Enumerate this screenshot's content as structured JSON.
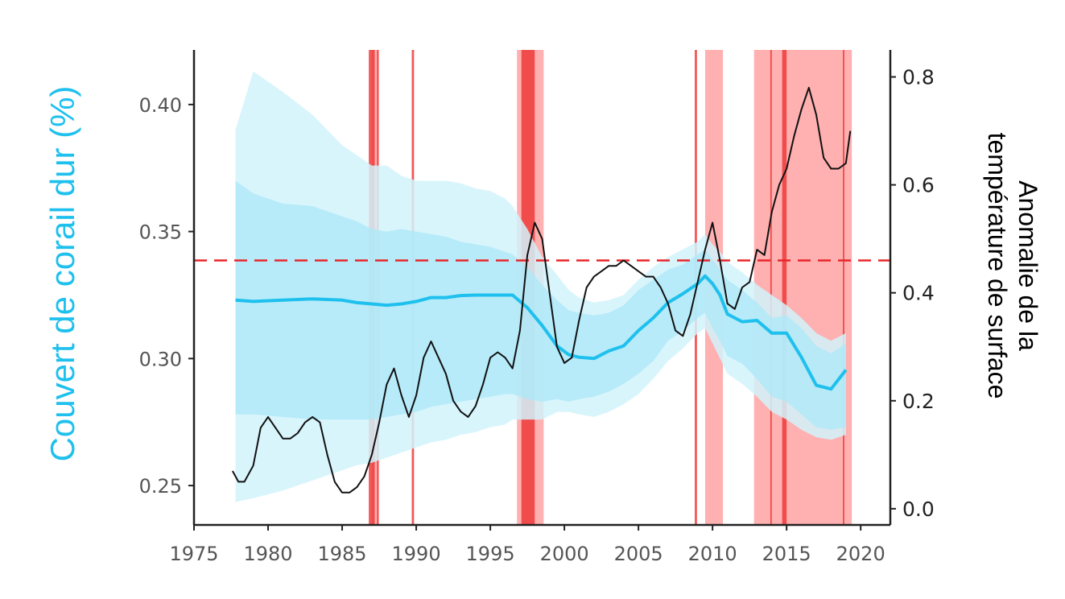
{
  "chart_data": {
    "type": "line",
    "ylabel_left": "Couvert de corail dur (%)",
    "ylabel_right": [
      "Anomalie de la",
      "température de surface"
    ],
    "xlim": [
      1975,
      2022
    ],
    "ylim_left": [
      0.2345,
      0.4215
    ],
    "ylim_right": [
      -0.03,
      0.85
    ],
    "x_ticks": [
      1975,
      1980,
      1985,
      1990,
      1995,
      2000,
      2005,
      2010,
      2015,
      2020
    ],
    "y_ticks_left": [
      "0.25",
      "0.30",
      "0.35",
      "0.40"
    ],
    "y_ticks_left_values": [
      0.25,
      0.3,
      0.35,
      0.4
    ],
    "y_ticks_right": [
      "0.0",
      "0.2",
      "0.4",
      "0.6",
      "0.8"
    ],
    "y_ticks_right_values": [
      0.0,
      0.2,
      0.4,
      0.6,
      0.8
    ],
    "threshold_right": 0.46,
    "colors": {
      "coral": "#1ec0ee",
      "outer_band": "#d2f3fc",
      "inner_band": "#aee8f8",
      "sst": "#111111",
      "threshold": "#e8262a",
      "event_light": "#ffb0b0",
      "event_strong": "#ee3b3b"
    },
    "bleaching_events_light": [
      [
        1987.0,
        1987.5
      ],
      [
        1996.8,
        1998.6
      ],
      [
        2009.5,
        2010.7
      ],
      [
        2012.8,
        2019.4
      ]
    ],
    "bleaching_events_strong": [
      [
        1986.8,
        1987.2
      ],
      [
        1987.35,
        1987.45
      ],
      [
        1989.7,
        1989.85
      ],
      [
        1997.1,
        1998.0
      ],
      [
        2008.8,
        2008.95
      ],
      [
        2013.9,
        2014.0
      ],
      [
        2014.7,
        2015.0
      ],
      [
        2018.8,
        2018.9
      ]
    ],
    "series": [
      {
        "name": "",
        "axis": "left",
        "x": [
          1977.8,
          1979,
          1981,
          1983,
          1985,
          1986,
          1987,
          1988,
          1989,
          1990,
          1991,
          1992,
          1993,
          1994,
          1995,
          1996,
          1996.5,
          1997.5,
          1998.5,
          1999.5,
          2000.3,
          2001,
          2002,
          2003,
          2004,
          2005,
          2006,
          2007,
          2008,
          2009,
          2009.5,
          2010,
          2010.5,
          2011,
          2012,
          2013,
          2014,
          2015,
          2016,
          2017,
          2018,
          2019
        ],
        "values": [
          0.323,
          0.3225,
          0.323,
          0.3235,
          0.323,
          0.322,
          0.3215,
          0.321,
          0.3215,
          0.3225,
          0.324,
          0.324,
          0.3248,
          0.325,
          0.325,
          0.325,
          0.325,
          0.32,
          0.313,
          0.305,
          0.3015,
          0.3005,
          0.3,
          0.303,
          0.305,
          0.311,
          0.316,
          0.322,
          0.3255,
          0.3295,
          0.3325,
          0.3295,
          0.325,
          0.3175,
          0.3145,
          0.315,
          0.31,
          0.31,
          0.3005,
          0.2895,
          0.288,
          0.2955
        ],
        "lower_inner": [
          0.278,
          0.278,
          0.277,
          0.276,
          0.276,
          0.276,
          0.276,
          0.277,
          0.278,
          0.279,
          0.281,
          0.282,
          0.283,
          0.284,
          0.285,
          0.286,
          0.286,
          0.284,
          0.283,
          0.284,
          0.283,
          0.284,
          0.285,
          0.287,
          0.29,
          0.294,
          0.299,
          0.307,
          0.311,
          0.316,
          0.318,
          0.312,
          0.307,
          0.301,
          0.298,
          0.292,
          0.285,
          0.283,
          0.278,
          0.273,
          0.272,
          0.273
        ],
        "upper_inner": [
          0.37,
          0.365,
          0.361,
          0.36,
          0.356,
          0.354,
          0.351,
          0.35,
          0.351,
          0.35,
          0.349,
          0.348,
          0.346,
          0.345,
          0.344,
          0.342,
          0.341,
          0.336,
          0.329,
          0.323,
          0.319,
          0.318,
          0.317,
          0.318,
          0.321,
          0.327,
          0.331,
          0.335,
          0.337,
          0.341,
          0.343,
          0.339,
          0.335,
          0.331,
          0.327,
          0.322,
          0.316,
          0.317,
          0.312,
          0.305,
          0.302,
          0.306
        ],
        "lower_outer": [
          0.2435,
          0.245,
          0.248,
          0.252,
          0.256,
          0.258,
          0.259,
          0.261,
          0.263,
          0.265,
          0.267,
          0.268,
          0.27,
          0.271,
          0.273,
          0.274,
          0.276,
          0.276,
          0.276,
          0.279,
          0.279,
          0.278,
          0.277,
          0.279,
          0.282,
          0.286,
          0.292,
          0.299,
          0.304,
          0.31,
          0.312,
          0.306,
          0.3,
          0.294,
          0.29,
          0.285,
          0.279,
          0.276,
          0.272,
          0.269,
          0.268,
          0.27
        ],
        "upper_outer": [
          0.39,
          0.413,
          0.405,
          0.396,
          0.384,
          0.38,
          0.376,
          0.376,
          0.372,
          0.37,
          0.37,
          0.37,
          0.369,
          0.367,
          0.366,
          0.363,
          0.36,
          0.351,
          0.34,
          0.333,
          0.327,
          0.324,
          0.322,
          0.323,
          0.325,
          0.331,
          0.336,
          0.34,
          0.343,
          0.346,
          0.349,
          0.345,
          0.342,
          0.338,
          0.334,
          0.329,
          0.325,
          0.321,
          0.316,
          0.31,
          0.307,
          0.31
        ]
      },
      {
        "name": "",
        "axis": "right",
        "x": [
          1977.6,
          1978.0,
          1978.4,
          1979.0,
          1979.5,
          1980.0,
          1980.5,
          1981.0,
          1981.5,
          1982.0,
          1982.5,
          1983.0,
          1983.5,
          1984.0,
          1984.5,
          1985.0,
          1985.5,
          1986.0,
          1986.5,
          1987.0,
          1987.5,
          1988.0,
          1988.5,
          1989.0,
          1989.5,
          1990.0,
          1990.5,
          1991.0,
          1991.5,
          1992.0,
          1992.5,
          1993.0,
          1993.5,
          1994.0,
          1994.5,
          1995.0,
          1995.5,
          1996.0,
          1996.5,
          1997.0,
          1997.5,
          1998.0,
          1998.5,
          1999.0,
          1999.5,
          2000.0,
          2000.5,
          2001.0,
          2001.5,
          2002.0,
          2002.5,
          2003.0,
          2003.5,
          2004.0,
          2004.5,
          2005.0,
          2005.5,
          2006.0,
          2006.5,
          2007.0,
          2007.5,
          2008.0,
          2008.5,
          2009.0,
          2009.5,
          2010.0,
          2010.5,
          2011.0,
          2011.5,
          2012.0,
          2012.5,
          2013.0,
          2013.5,
          2014.0,
          2014.5,
          2015.0,
          2015.5,
          2016.0,
          2016.5,
          2017.0,
          2017.5,
          2018.0,
          2018.5,
          2019.0,
          2019.3
        ],
        "values": [
          0.07,
          0.05,
          0.05,
          0.08,
          0.15,
          0.17,
          0.15,
          0.13,
          0.13,
          0.14,
          0.16,
          0.17,
          0.16,
          0.1,
          0.05,
          0.03,
          0.03,
          0.04,
          0.06,
          0.1,
          0.16,
          0.23,
          0.26,
          0.21,
          0.17,
          0.21,
          0.28,
          0.31,
          0.28,
          0.25,
          0.2,
          0.18,
          0.17,
          0.19,
          0.23,
          0.28,
          0.29,
          0.28,
          0.26,
          0.33,
          0.47,
          0.53,
          0.5,
          0.4,
          0.3,
          0.27,
          0.28,
          0.35,
          0.41,
          0.43,
          0.44,
          0.45,
          0.45,
          0.46,
          0.45,
          0.44,
          0.43,
          0.43,
          0.41,
          0.38,
          0.33,
          0.32,
          0.36,
          0.42,
          0.48,
          0.53,
          0.46,
          0.38,
          0.37,
          0.41,
          0.42,
          0.48,
          0.47,
          0.55,
          0.6,
          0.63,
          0.69,
          0.74,
          0.78,
          0.73,
          0.65,
          0.63,
          0.63,
          0.64,
          0.7
        ]
      }
    ]
  }
}
